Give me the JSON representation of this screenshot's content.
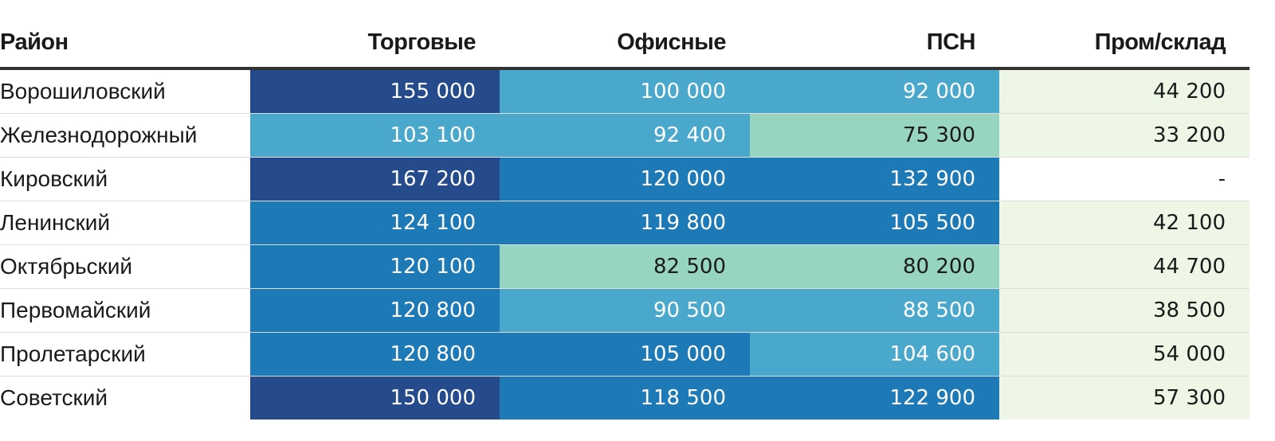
{
  "chart_data": {
    "type": "table",
    "columns": [
      "Район",
      "Торговые",
      "Офисные",
      "ПСН",
      "Пром/склад"
    ],
    "rows": [
      {
        "name": "Ворошиловский",
        "values": [
          "155 000",
          "100 000",
          "92 000",
          "44 200"
        ]
      },
      {
        "name": "Железнодорожный",
        "values": [
          "103 100",
          "92 400",
          "75 300",
          "33 200"
        ]
      },
      {
        "name": "Кировский",
        "values": [
          "167 200",
          "120 000",
          "132 900",
          "-"
        ]
      },
      {
        "name": "Ленинский",
        "values": [
          "124 100",
          "119 800",
          "105 500",
          "42 100"
        ]
      },
      {
        "name": "Октябрьский",
        "values": [
          "120 100",
          "82 500",
          "80 200",
          "44 700"
        ]
      },
      {
        "name": "Первомайский",
        "values": [
          "120 800",
          "90 500",
          "88 500",
          "38 500"
        ]
      },
      {
        "name": "Пролетарский",
        "values": [
          "120 800",
          "105 000",
          "104 600",
          "54 000"
        ]
      },
      {
        "name": "Советский",
        "values": [
          "150 000",
          "118 500",
          "122 900",
          "57 300"
        ]
      }
    ],
    "colors": {
      "darkest": "#264b8d",
      "dark": "#1e79b7",
      "medium": "#4aa8cc",
      "light": "#97d5c0",
      "lightest": "#eef7e5",
      "empty": "#ffffff"
    }
  }
}
